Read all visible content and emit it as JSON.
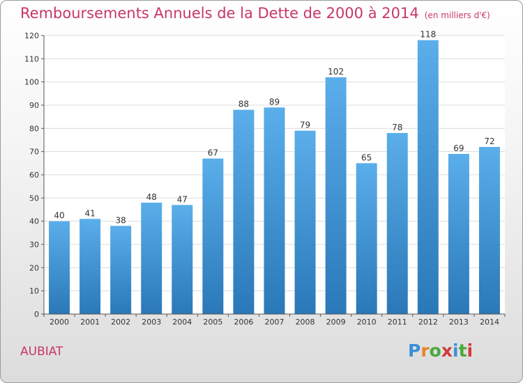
{
  "chart_data": {
    "type": "bar",
    "title": "Remboursements Annuels de la Dette de 2000 à 2014",
    "subtitle": "(en milliers d'€)",
    "categories": [
      "2000",
      "2001",
      "2002",
      "2003",
      "2004",
      "2005",
      "2006",
      "2007",
      "2008",
      "2009",
      "2010",
      "2011",
      "2012",
      "2013",
      "2014"
    ],
    "values": [
      40,
      41,
      38,
      48,
      47,
      67,
      88,
      89,
      79,
      102,
      65,
      78,
      118,
      69,
      72
    ],
    "ylim": [
      0,
      120
    ],
    "yticks": [
      0,
      10,
      20,
      30,
      40,
      50,
      60,
      70,
      80,
      90,
      100,
      110,
      120
    ],
    "grid": "horizontal",
    "bar_color_top": "#5aaeea",
    "bar_color_bottom": "#2a78b8"
  },
  "footer": {
    "commune": "AUBIAT",
    "logo_text": "Proxiti",
    "logo_colors": [
      "#3a8fd6",
      "#e8832a",
      "#4aa83a",
      "#d23a3a",
      "#3a8fd6",
      "#4aa83a",
      "#d23a3a"
    ]
  }
}
